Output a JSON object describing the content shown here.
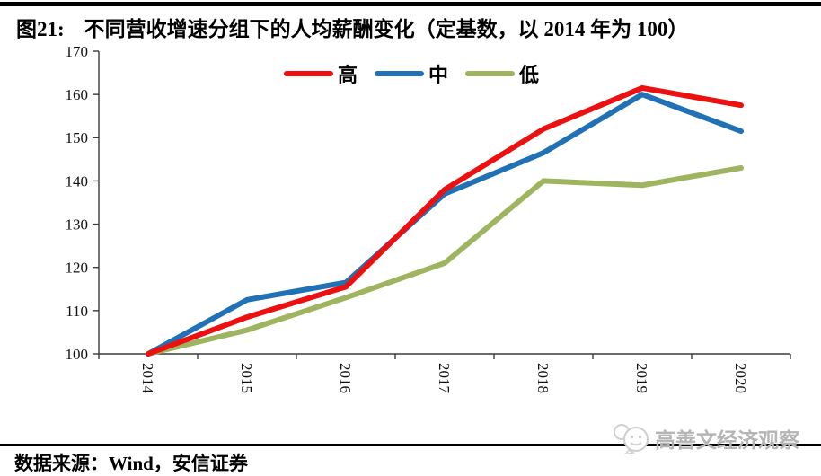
{
  "header": {
    "prefix": "图21:",
    "title": "不同营收增速分组下的人均薪酬变化（定基数，以 2014 年为 100）"
  },
  "chart_data": {
    "type": "line",
    "title": "不同营收增速分组下的人均薪酬变化（定基数，以 2014 年为 100）",
    "categories": [
      "2014",
      "2015",
      "2016",
      "2017",
      "2018",
      "2019",
      "2020"
    ],
    "series": [
      {
        "name": "高",
        "color": "#ec1010",
        "values": [
          100,
          108.5,
          115.5,
          138,
          152,
          161.5,
          157.5
        ]
      },
      {
        "name": "中",
        "color": "#2071b5",
        "values": [
          100,
          112.5,
          116.5,
          137,
          146.5,
          160,
          151.5
        ]
      },
      {
        "name": "低",
        "color": "#9fb45f",
        "values": [
          100,
          105.5,
          113,
          121,
          140,
          139,
          143
        ]
      }
    ],
    "xlabel": "",
    "ylabel": "",
    "ylim": [
      100,
      170
    ],
    "ytick_step": 10,
    "yticks": [
      100,
      110,
      120,
      130,
      140,
      150,
      160,
      170
    ],
    "grid": false,
    "legend_position": "top-center",
    "x_label_rotation": 90
  },
  "footer": {
    "source": "数据来源：Wind，安信证券"
  },
  "watermark": {
    "icon": "wechat-icon",
    "text": "高善文经济观察",
    "color": "#b5b5b5"
  },
  "colors": {
    "axis": "#3a3a3a",
    "rule": "#000000"
  }
}
